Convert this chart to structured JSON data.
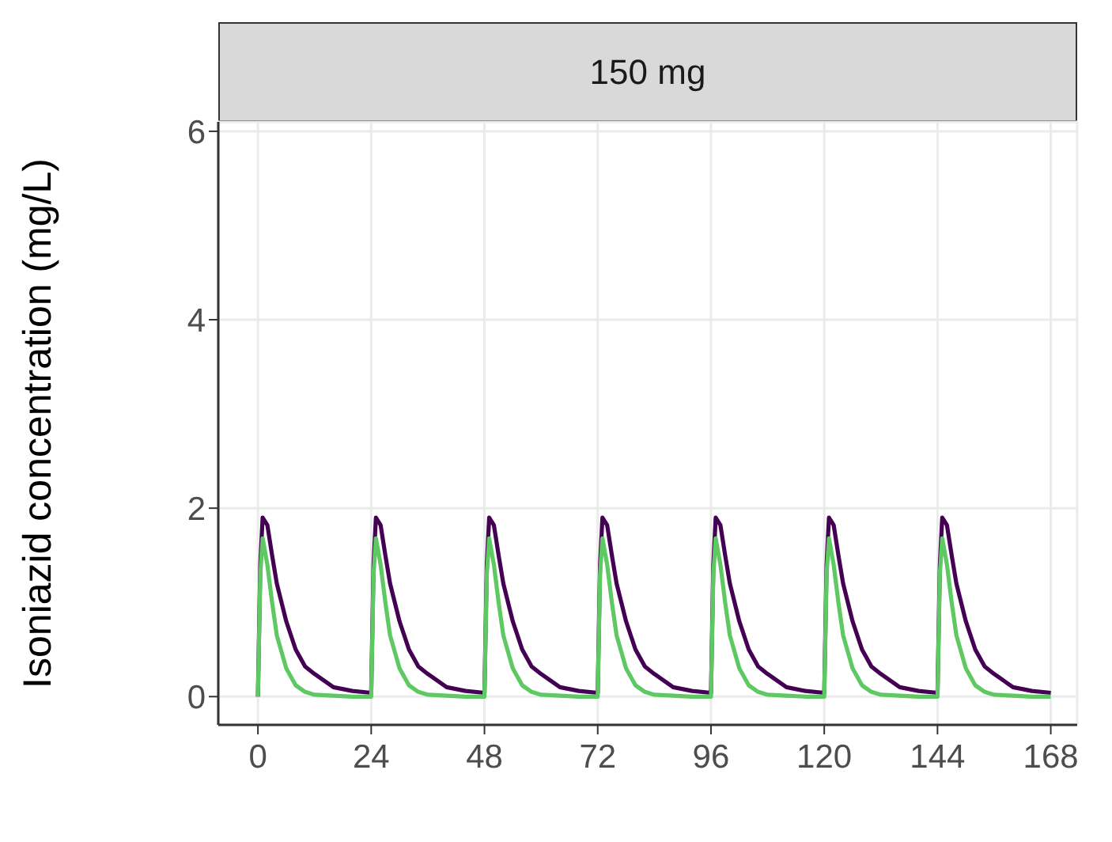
{
  "chart_data": {
    "type": "line",
    "title": "150 mg",
    "ylabel": "Isoniazid concentration (mg/L)",
    "xlim": [
      -8.4,
      173.6
    ],
    "ylim": [
      -0.3,
      6.1
    ],
    "xticks": [
      0,
      24,
      48,
      72,
      96,
      120,
      144,
      168
    ],
    "yticks": [
      0,
      2,
      4,
      6
    ],
    "grid": true,
    "series": [
      {
        "color": "#440154",
        "x": [
          0,
          0.5,
          1,
          2,
          3,
          4,
          6,
          8,
          10,
          12,
          16,
          20,
          24,
          24.5,
          25,
          26,
          27,
          28,
          30,
          32,
          34,
          36,
          40,
          44,
          48,
          48.5,
          49,
          50,
          51,
          52,
          54,
          56,
          58,
          60,
          64,
          68,
          72,
          72.5,
          73,
          74,
          75,
          76,
          78,
          80,
          82,
          84,
          88,
          92,
          96,
          96.5,
          97,
          98,
          99,
          100,
          102,
          104,
          106,
          108,
          112,
          116,
          120,
          120.5,
          121,
          122,
          123,
          124,
          126,
          128,
          130,
          132,
          136,
          140,
          144,
          144.5,
          145,
          146,
          147,
          148,
          150,
          152,
          154,
          156,
          160,
          164,
          168
        ],
        "values": [
          0,
          1.4,
          1.9,
          1.82,
          1.5,
          1.2,
          0.8,
          0.5,
          0.32,
          0.24,
          0.1,
          0.06,
          0.04,
          1.4,
          1.9,
          1.82,
          1.5,
          1.2,
          0.8,
          0.5,
          0.32,
          0.24,
          0.1,
          0.06,
          0.04,
          1.4,
          1.9,
          1.82,
          1.5,
          1.2,
          0.8,
          0.5,
          0.32,
          0.24,
          0.1,
          0.06,
          0.04,
          1.4,
          1.9,
          1.82,
          1.5,
          1.2,
          0.8,
          0.5,
          0.32,
          0.24,
          0.1,
          0.06,
          0.04,
          1.4,
          1.9,
          1.82,
          1.5,
          1.2,
          0.8,
          0.5,
          0.32,
          0.24,
          0.1,
          0.06,
          0.04,
          1.4,
          1.9,
          1.82,
          1.5,
          1.2,
          0.8,
          0.5,
          0.32,
          0.24,
          0.1,
          0.06,
          0.04,
          1.4,
          1.9,
          1.82,
          1.5,
          1.2,
          0.8,
          0.5,
          0.32,
          0.24,
          0.1,
          0.06,
          0.04
        ]
      },
      {
        "color": "#5ec962",
        "x": [
          0,
          0.5,
          1,
          2,
          3,
          4,
          6,
          8,
          10,
          12,
          16,
          20,
          24,
          24.5,
          25,
          26,
          27,
          28,
          30,
          32,
          34,
          36,
          40,
          44,
          48,
          48.5,
          49,
          50,
          51,
          52,
          54,
          56,
          58,
          60,
          64,
          68,
          72,
          72.5,
          73,
          74,
          75,
          76,
          78,
          80,
          82,
          84,
          88,
          92,
          96,
          96.5,
          97,
          98,
          99,
          100,
          102,
          104,
          106,
          108,
          112,
          116,
          120,
          120.5,
          121,
          122,
          123,
          124,
          126,
          128,
          130,
          132,
          136,
          140,
          144,
          144.5,
          145,
          146,
          147,
          148,
          150,
          152,
          154,
          156,
          160,
          164,
          168
        ],
        "values": [
          0,
          1.3,
          1.68,
          1.4,
          1.0,
          0.65,
          0.3,
          0.12,
          0.05,
          0.02,
          0.01,
          0,
          0,
          1.3,
          1.68,
          1.4,
          1.0,
          0.65,
          0.3,
          0.12,
          0.05,
          0.02,
          0.01,
          0,
          0,
          1.3,
          1.68,
          1.4,
          1.0,
          0.65,
          0.3,
          0.12,
          0.05,
          0.02,
          0.01,
          0,
          0,
          1.3,
          1.68,
          1.4,
          1.0,
          0.65,
          0.3,
          0.12,
          0.05,
          0.02,
          0.01,
          0,
          0,
          1.3,
          1.68,
          1.4,
          1.0,
          0.65,
          0.3,
          0.12,
          0.05,
          0.02,
          0.01,
          0,
          0,
          1.3,
          1.68,
          1.4,
          1.0,
          0.65,
          0.3,
          0.12,
          0.05,
          0.02,
          0.01,
          0,
          0,
          1.3,
          1.68,
          1.4,
          1.0,
          0.65,
          0.3,
          0.12,
          0.05,
          0.02,
          0.01,
          0,
          0
        ]
      }
    ]
  }
}
